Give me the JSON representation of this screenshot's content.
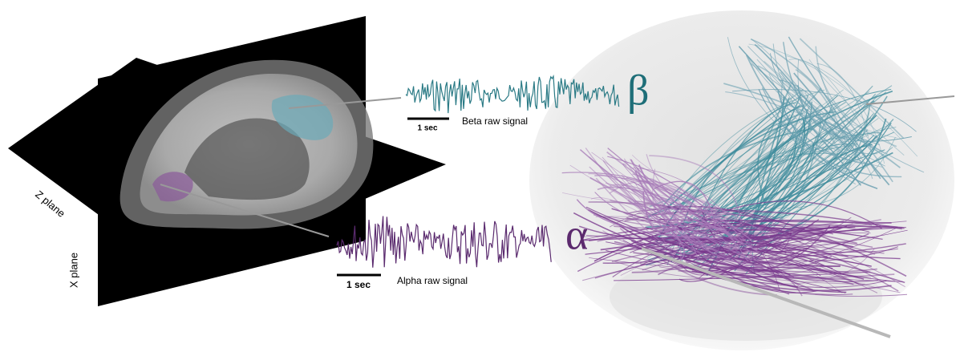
{
  "z_plane_label": "Z plane",
  "x_plane_label": "X plane",
  "beta": {
    "scale_label": "1 sec",
    "caption": "Beta raw signal",
    "symbol": "β"
  },
  "alpha": {
    "scale_label": "1 sec",
    "caption": "Alpha raw signal",
    "symbol": "α"
  }
}
